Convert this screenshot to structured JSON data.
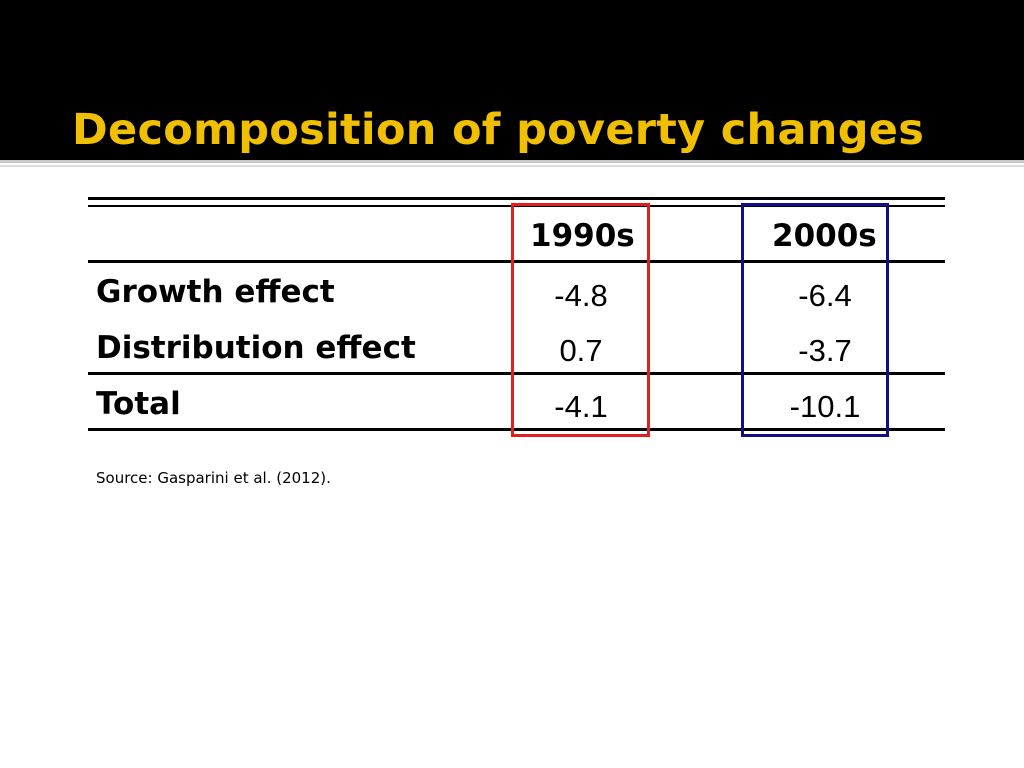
{
  "slide": {
    "title": "Decomposition of poverty changes",
    "title_color": "#f0c000",
    "background_header": "#000000"
  },
  "table": {
    "columns": [
      "1990s",
      "2000s"
    ],
    "rows": [
      {
        "label": "Growth effect",
        "values": [
          "-4.8",
          "-6.4"
        ]
      },
      {
        "label": "Distribution effect",
        "values": [
          "0.7",
          "-3.7"
        ]
      },
      {
        "label": "Total",
        "values": [
          "-4.1",
          "-10.1"
        ]
      }
    ],
    "highlight_colors": {
      "1990s": "#e02020",
      "2000s": "#101080"
    }
  },
  "source": "Source: Gasparini et al. (2012)."
}
